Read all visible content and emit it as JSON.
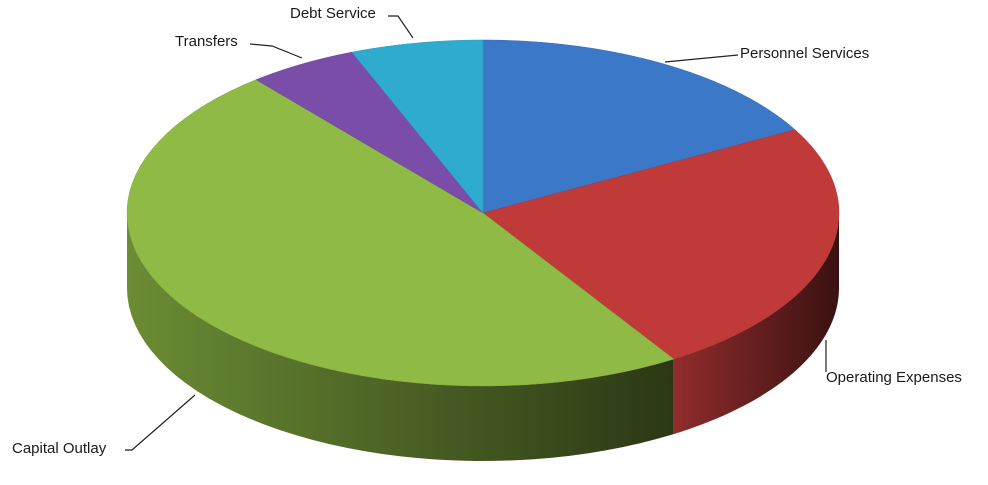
{
  "chart_data": {
    "type": "pie3d",
    "categories": [
      "Personnel Services",
      "Operating Expenses",
      "Capital Outlay",
      "Transfers",
      "Debt Service"
    ],
    "values": [
      17,
      24,
      48,
      5,
      6
    ],
    "colors": [
      "#3b78c8",
      "#c13a3a",
      "#8fba45",
      "#7a4ea8",
      "#2fabd0"
    ]
  }
}
